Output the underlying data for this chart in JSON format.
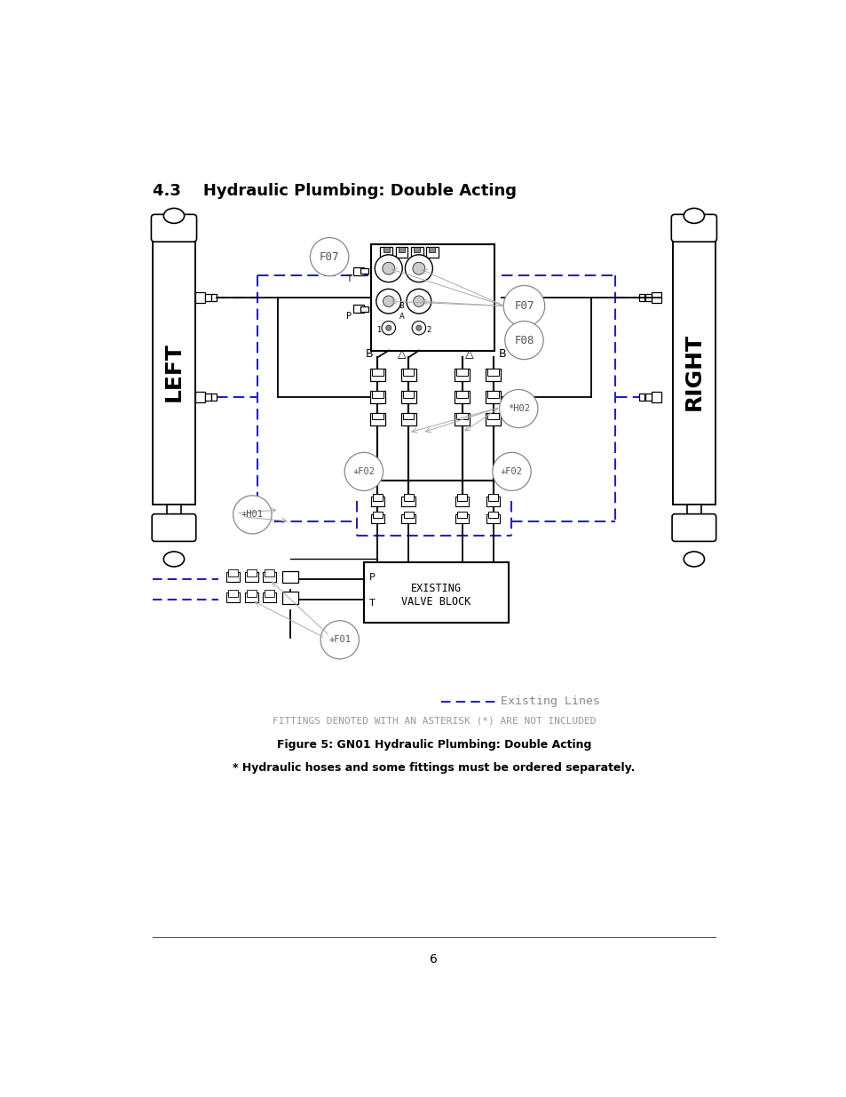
{
  "page_title": "4.3    Hydraulic Plumbing: Double Acting",
  "figure_caption": "Figure 5: GN01 Hydraulic Plumbing: Double Acting",
  "note_text": "* Hydraulic hoses and some fittings must be ordered separately.",
  "fittings_note": "FITTINGS DENOTED WITH AN ASTERISK (*) ARE NOT INCLUDED",
  "existing_lines_label": "Existing Lines",
  "page_number": "6",
  "bg": "#ffffff",
  "lc": "#000000",
  "bc": "#2222cc",
  "gc": "#aaaaaa"
}
